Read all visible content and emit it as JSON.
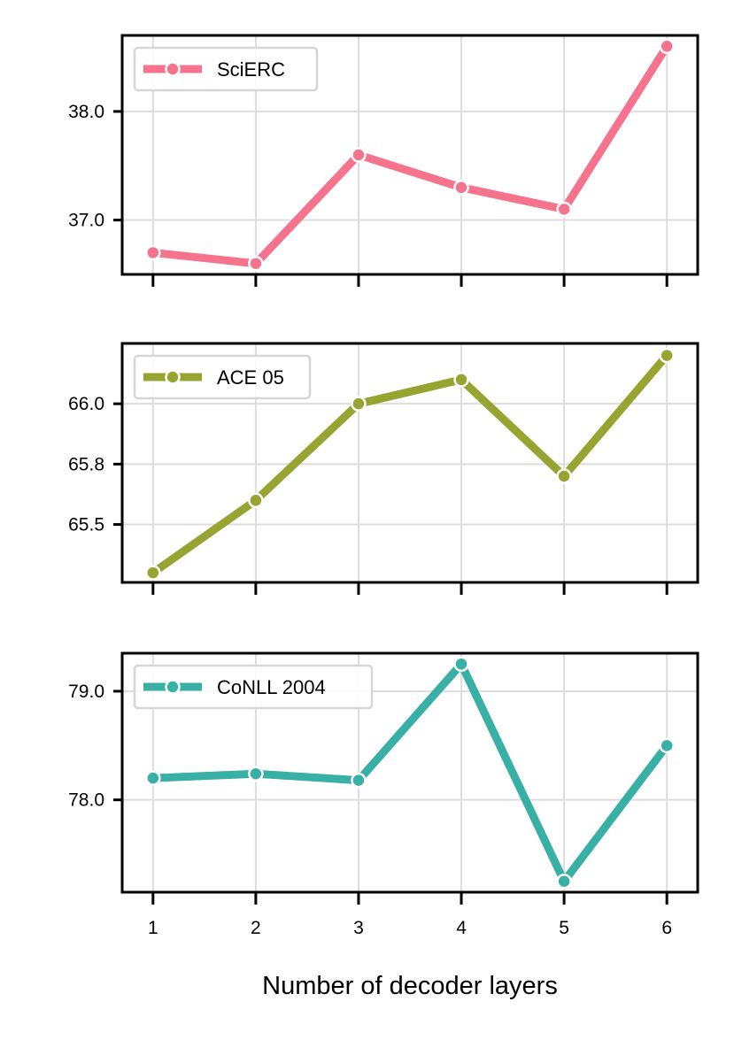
{
  "figure": {
    "xlabel": "Number of decoder layers"
  },
  "chart_data": [
    {
      "type": "line",
      "x": [
        1,
        2,
        3,
        4,
        5,
        6
      ],
      "series": [
        {
          "name": "SciERC",
          "values": [
            36.7,
            36.6,
            37.6,
            37.3,
            37.1,
            38.6
          ],
          "color": "#f5738c"
        }
      ],
      "yticks": [
        37.0,
        38.0
      ],
      "ytick_labels": [
        "37.0",
        "38.0"
      ],
      "ylim": [
        36.5,
        38.7
      ],
      "xlim": [
        0.7,
        6.3
      ],
      "xtick_labels_visible": false,
      "legend_position": "upper left",
      "grid": true
    },
    {
      "type": "line",
      "x": [
        1,
        2,
        3,
        4,
        5,
        6
      ],
      "series": [
        {
          "name": "ACE 05",
          "values": [
            65.3,
            65.6,
            66.0,
            66.1,
            65.7,
            66.2
          ],
          "color": "#97a431"
        }
      ],
      "yticks": [
        65.5,
        65.75,
        66.0
      ],
      "ytick_labels": [
        "65.5",
        "65.8",
        "66.0"
      ],
      "ylim": [
        65.26,
        66.25
      ],
      "xlim": [
        0.7,
        6.3
      ],
      "xtick_labels_visible": false,
      "legend_position": "upper left",
      "grid": true
    },
    {
      "type": "line",
      "x": [
        1,
        2,
        3,
        4,
        5,
        6
      ],
      "series": [
        {
          "name": "CoNLL 2004",
          "values": [
            78.2,
            78.24,
            78.18,
            79.25,
            77.25,
            78.5
          ],
          "color": "#38b0a5"
        }
      ],
      "yticks": [
        78.0,
        79.0
      ],
      "ytick_labels": [
        "78.0",
        "79.0"
      ],
      "ylim": [
        77.15,
        79.35
      ],
      "xlim": [
        0.7,
        6.3
      ],
      "xtick_labels": [
        "1",
        "2",
        "3",
        "4",
        "5",
        "6"
      ],
      "xtick_labels_visible": true,
      "legend_position": "upper left",
      "grid": true
    }
  ]
}
